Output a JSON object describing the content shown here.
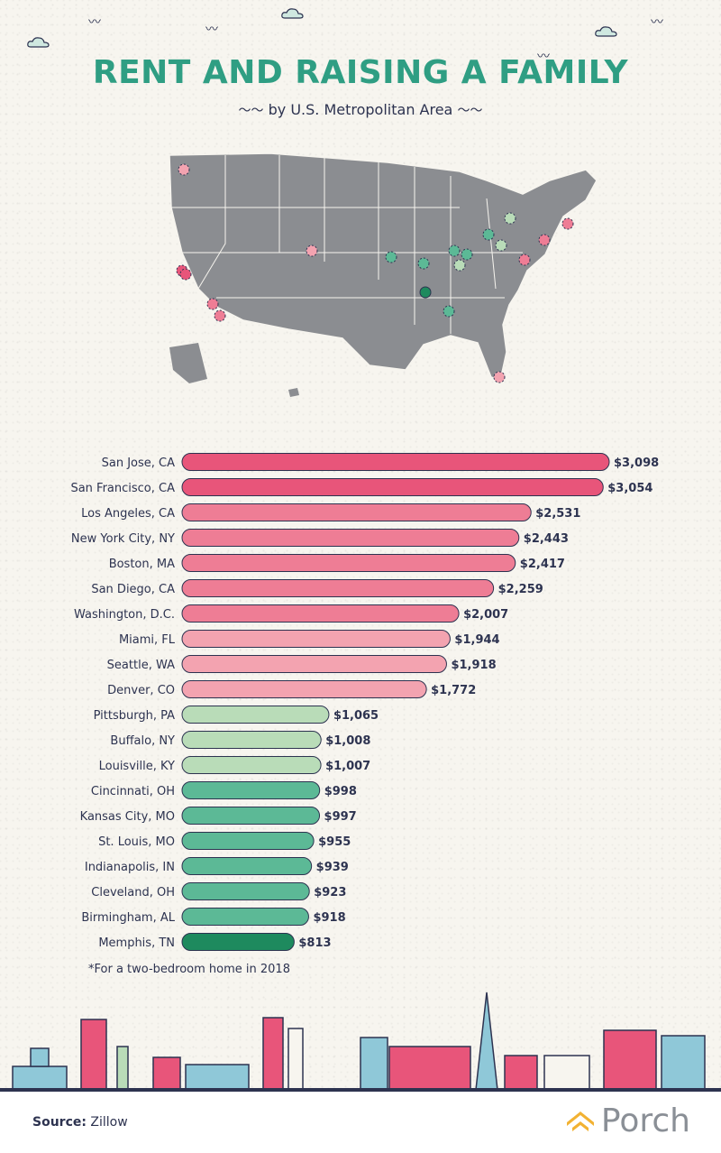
{
  "header": {
    "title": "RENT AND RAISING A FAMILY",
    "subtitle": "by U.S. Metropolitan Area"
  },
  "colors": {
    "title": "#2f9e83",
    "text": "#2d3350",
    "pink_dark": "#e8557a",
    "pink_mid": "#ee7d95",
    "pink_light": "#f3a3b0",
    "green_light": "#b9dcb8",
    "green_mid": "#5cb996",
    "green_dark": "#1e8a5e",
    "map": "#8b8d91"
  },
  "chart_data": {
    "type": "bar",
    "orientation": "horizontal",
    "categories": [
      "San Jose, CA",
      "San Francisco, CA",
      "Los Angeles, CA",
      "New York City, NY",
      "Boston, MA",
      "San Diego, CA",
      "Washington, D.C.",
      "Miami, FL",
      "Seattle, WA",
      "Denver, CO",
      "Pittsburgh, PA",
      "Buffalo, NY",
      "Louisville, KY",
      "Cincinnati, OH",
      "Kansas City, MO",
      "St. Louis, MO",
      "Indianapolis, IN",
      "Cleveland, OH",
      "Birmingham, AL",
      "Memphis, TN"
    ],
    "values": [
      3098,
      3054,
      2531,
      2443,
      2417,
      2259,
      2007,
      1944,
      1918,
      1772,
      1065,
      1008,
      1007,
      998,
      997,
      955,
      939,
      923,
      918,
      813
    ],
    "value_labels": [
      "$3,098",
      "$3,054",
      "$2,531",
      "$2,443",
      "$2,417",
      "$2,259",
      "$2,007",
      "$1,944",
      "$1,918",
      "$1,772",
      "$1,065",
      "$1,008",
      "$1,007",
      "$998",
      "$997",
      "$955",
      "$939",
      "$923",
      "$918",
      "$813"
    ],
    "bar_colors": [
      "#e8557a",
      "#e8557a",
      "#ee7d95",
      "#ee7d95",
      "#ee7d95",
      "#ee7d95",
      "#ee7d95",
      "#f3a3b0",
      "#f3a3b0",
      "#f3a3b0",
      "#b9dcb8",
      "#b9dcb8",
      "#b9dcb8",
      "#5cb996",
      "#5cb996",
      "#5cb996",
      "#5cb996",
      "#5cb996",
      "#5cb996",
      "#1e8a5e"
    ],
    "xlim": [
      0,
      3098
    ],
    "grid": false,
    "legend": "none"
  },
  "footnote": "*For a two-bedroom home in 2018",
  "footer": {
    "source_label": "Source:",
    "source_value": "Zillow",
    "brand": "Porch"
  }
}
